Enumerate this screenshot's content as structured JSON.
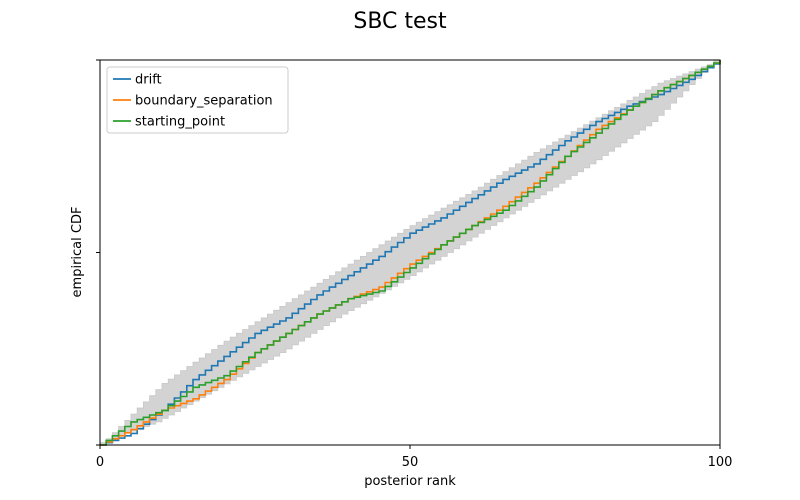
{
  "chart_data": {
    "type": "line",
    "title": "SBC test",
    "xlabel": "posterior rank",
    "ylabel": "empirical CDF",
    "xlim": [
      0,
      100
    ],
    "ylim": [
      0,
      1
    ],
    "xticks": [
      0,
      50,
      100
    ],
    "xtick_labels": [
      "0",
      "50",
      "100"
    ],
    "yticks": [
      0,
      0.5,
      1
    ],
    "ytick_labels": [
      "",
      "",
      ""
    ],
    "grid": false,
    "legend_position": "top-left",
    "band": {
      "color": "#d3d3d3",
      "x": [
        0,
        10,
        20,
        30,
        40,
        50,
        60,
        70,
        80,
        90,
        100
      ],
      "lower": [
        0,
        0.06,
        0.15,
        0.24,
        0.34,
        0.43,
        0.53,
        0.63,
        0.73,
        0.84,
        1
      ],
      "upper": [
        0,
        0.16,
        0.27,
        0.37,
        0.47,
        0.57,
        0.66,
        0.76,
        0.85,
        0.94,
        1
      ]
    },
    "series": [
      {
        "name": "drift",
        "color": "#1f77b4",
        "x": [
          0,
          5,
          10,
          15,
          20,
          25,
          30,
          35,
          40,
          45,
          50,
          55,
          60,
          65,
          70,
          75,
          80,
          85,
          90,
          95,
          100
        ],
        "y": [
          0,
          0.03,
          0.09,
          0.17,
          0.23,
          0.29,
          0.33,
          0.39,
          0.44,
          0.49,
          0.55,
          0.59,
          0.64,
          0.69,
          0.73,
          0.79,
          0.84,
          0.88,
          0.91,
          0.95,
          1
        ]
      },
      {
        "name": "boundary_separation",
        "color": "#ff7f0e",
        "x": [
          0,
          5,
          10,
          15,
          20,
          25,
          30,
          35,
          40,
          45,
          50,
          55,
          60,
          65,
          70,
          75,
          80,
          85,
          90,
          95,
          100
        ],
        "y": [
          0,
          0.04,
          0.09,
          0.12,
          0.17,
          0.24,
          0.29,
          0.34,
          0.38,
          0.41,
          0.47,
          0.52,
          0.57,
          0.62,
          0.68,
          0.75,
          0.82,
          0.87,
          0.92,
          0.96,
          1
        ]
      },
      {
        "name": "starting_point",
        "color": "#2ca02c",
        "x": [
          0,
          5,
          10,
          15,
          20,
          25,
          30,
          35,
          40,
          45,
          50,
          55,
          60,
          65,
          70,
          75,
          80,
          85,
          90,
          95,
          100
        ],
        "y": [
          0,
          0.06,
          0.09,
          0.15,
          0.18,
          0.24,
          0.29,
          0.34,
          0.38,
          0.4,
          0.46,
          0.52,
          0.57,
          0.61,
          0.67,
          0.75,
          0.81,
          0.87,
          0.92,
          0.96,
          1
        ]
      }
    ]
  }
}
